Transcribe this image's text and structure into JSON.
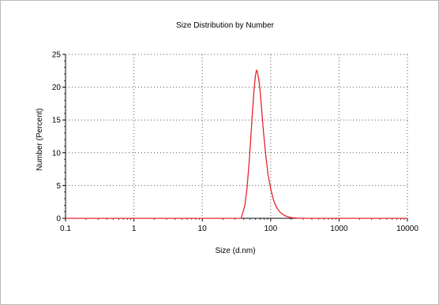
{
  "chart_data": {
    "type": "line",
    "title": "Size Distribution by Number",
    "xlabel": "Size (d.nm)",
    "ylabel": "Number (Percent)",
    "x_scale": "log",
    "xlim": [
      0.1,
      10000
    ],
    "ylim": [
      0,
      25
    ],
    "x_ticks": [
      0.1,
      1,
      10,
      100,
      1000,
      10000
    ],
    "x_tick_labels": [
      "0.1",
      "1",
      "10",
      "100",
      "1000",
      "10000"
    ],
    "y_ticks": [
      0,
      5,
      10,
      15,
      20,
      25
    ],
    "y_tick_labels": [
      "0",
      "5",
      "10",
      "15",
      "20",
      "25"
    ],
    "grid": true,
    "legend": false,
    "series": [
      {
        "color": "#e8242b",
        "x": [
          0.1,
          0.4,
          1,
          10,
          30,
          37,
          42,
          45,
          48,
          51,
          54,
          57,
          60,
          62,
          64,
          67,
          70,
          74,
          78,
          85,
          92,
          100,
          110,
          120,
          135,
          150,
          170,
          200,
          250,
          300,
          500,
          1000,
          10000
        ],
        "y": [
          0,
          0,
          0,
          0,
          0,
          0,
          2.0,
          4.5,
          8.0,
          12.0,
          16.0,
          19.5,
          21.8,
          22.6,
          22.3,
          21.2,
          19.5,
          16.5,
          13.5,
          9.5,
          6.5,
          4.5,
          2.8,
          1.8,
          1.0,
          0.6,
          0.3,
          0.1,
          0.02,
          0,
          0,
          0,
          0
        ]
      }
    ]
  }
}
